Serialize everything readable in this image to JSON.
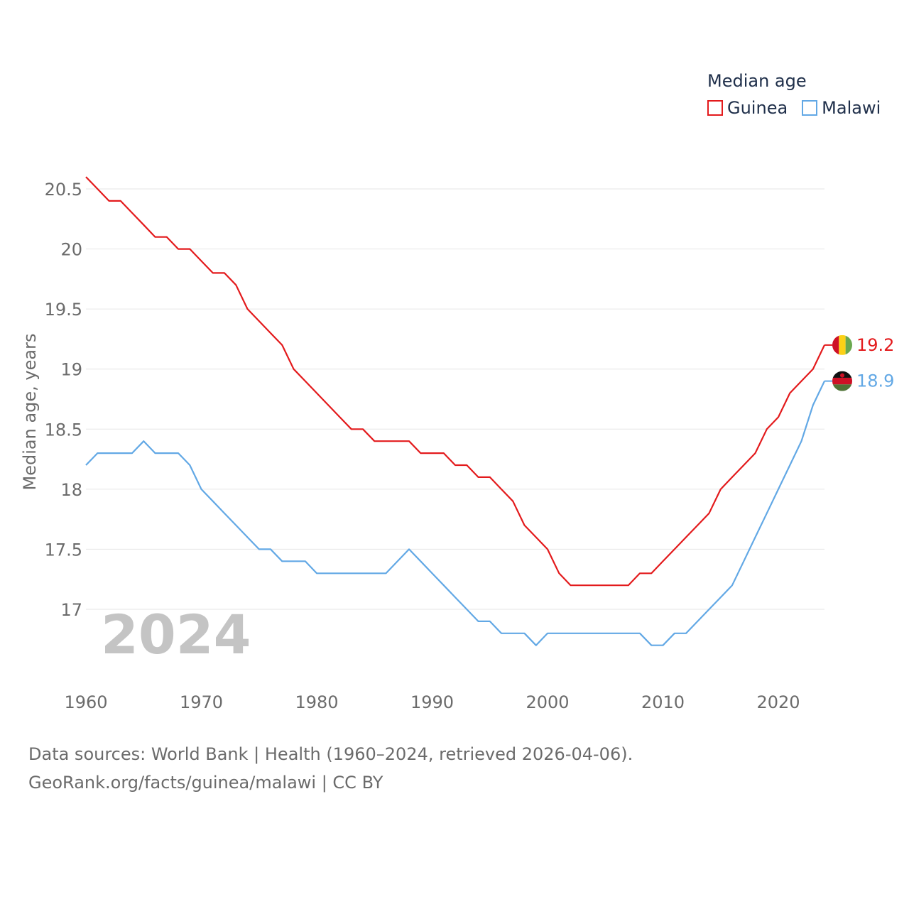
{
  "chart_data": {
    "type": "line",
    "legend_title": "Median age",
    "ylabel": "Median age, years",
    "xlabel": "",
    "ylim": [
      16.4,
      20.8
    ],
    "xlim": [
      1960,
      2024
    ],
    "yticks": [
      {
        "value": 17,
        "label": "17"
      },
      {
        "value": 17.5,
        "label": "17.5"
      },
      {
        "value": 18,
        "label": "18"
      },
      {
        "value": 18.5,
        "label": "18.5"
      },
      {
        "value": 19,
        "label": "19"
      },
      {
        "value": 19.5,
        "label": "19.5"
      },
      {
        "value": 20,
        "label": "20"
      },
      {
        "value": 20.5,
        "label": "20.5"
      }
    ],
    "xticks": [
      {
        "value": 1960,
        "label": "1960"
      },
      {
        "value": 1970,
        "label": "1970"
      },
      {
        "value": 1980,
        "label": "1980"
      },
      {
        "value": 1990,
        "label": "1990"
      },
      {
        "value": 2000,
        "label": "2000"
      },
      {
        "value": 2010,
        "label": "2010"
      },
      {
        "value": 2020,
        "label": "2020"
      }
    ],
    "year_watermark": "2024",
    "x": [
      1960,
      1961,
      1962,
      1963,
      1964,
      1965,
      1966,
      1967,
      1968,
      1969,
      1970,
      1971,
      1972,
      1973,
      1974,
      1975,
      1976,
      1977,
      1978,
      1979,
      1980,
      1981,
      1982,
      1983,
      1984,
      1985,
      1986,
      1987,
      1988,
      1989,
      1990,
      1991,
      1992,
      1993,
      1994,
      1995,
      1996,
      1997,
      1998,
      1999,
      2000,
      2001,
      2002,
      2003,
      2004,
      2005,
      2006,
      2007,
      2008,
      2009,
      2010,
      2011,
      2012,
      2013,
      2014,
      2015,
      2016,
      2017,
      2018,
      2019,
      2020,
      2021,
      2022,
      2023,
      2024
    ],
    "series": [
      {
        "name": "Guinea",
        "color": "#e31a1c",
        "end_label": "19.2",
        "flag": "guinea-flag",
        "values": [
          20.6,
          20.5,
          20.4,
          20.4,
          20.3,
          20.2,
          20.1,
          20.1,
          20.0,
          20.0,
          19.9,
          19.8,
          19.8,
          19.7,
          19.5,
          19.4,
          19.3,
          19.2,
          19.0,
          18.9,
          18.8,
          18.7,
          18.6,
          18.5,
          18.5,
          18.4,
          18.4,
          18.4,
          18.4,
          18.3,
          18.3,
          18.3,
          18.2,
          18.2,
          18.1,
          18.1,
          18.0,
          17.9,
          17.7,
          17.6,
          17.5,
          17.3,
          17.2,
          17.2,
          17.2,
          17.2,
          17.2,
          17.2,
          17.3,
          17.3,
          17.4,
          17.5,
          17.6,
          17.7,
          17.8,
          18.0,
          18.1,
          18.2,
          18.3,
          18.5,
          18.6,
          18.8,
          18.9,
          19.0,
          19.2
        ]
      },
      {
        "name": "Malawi",
        "color": "#62a8e5",
        "end_label": "18.9",
        "flag": "malawi-flag",
        "values": [
          18.2,
          18.3,
          18.3,
          18.3,
          18.3,
          18.4,
          18.3,
          18.3,
          18.3,
          18.2,
          18.0,
          17.9,
          17.8,
          17.7,
          17.6,
          17.5,
          17.5,
          17.4,
          17.4,
          17.4,
          17.3,
          17.3,
          17.3,
          17.3,
          17.3,
          17.3,
          17.3,
          17.4,
          17.5,
          17.4,
          17.3,
          17.2,
          17.1,
          17.0,
          16.9,
          16.9,
          16.8,
          16.8,
          16.8,
          16.7,
          16.8,
          16.8,
          16.8,
          16.8,
          16.8,
          16.8,
          16.8,
          16.8,
          16.8,
          16.7,
          16.7,
          16.8,
          16.8,
          16.9,
          17.0,
          17.1,
          17.2,
          17.4,
          17.6,
          17.8,
          18.0,
          18.2,
          18.4,
          18.7,
          18.9
        ]
      }
    ]
  },
  "footer": {
    "line1": "Data sources: World Bank | Health (1960–2024, retrieved 2026-04-06).",
    "line2": "GeoRank.org/facts/guinea/malawi | CC BY"
  }
}
